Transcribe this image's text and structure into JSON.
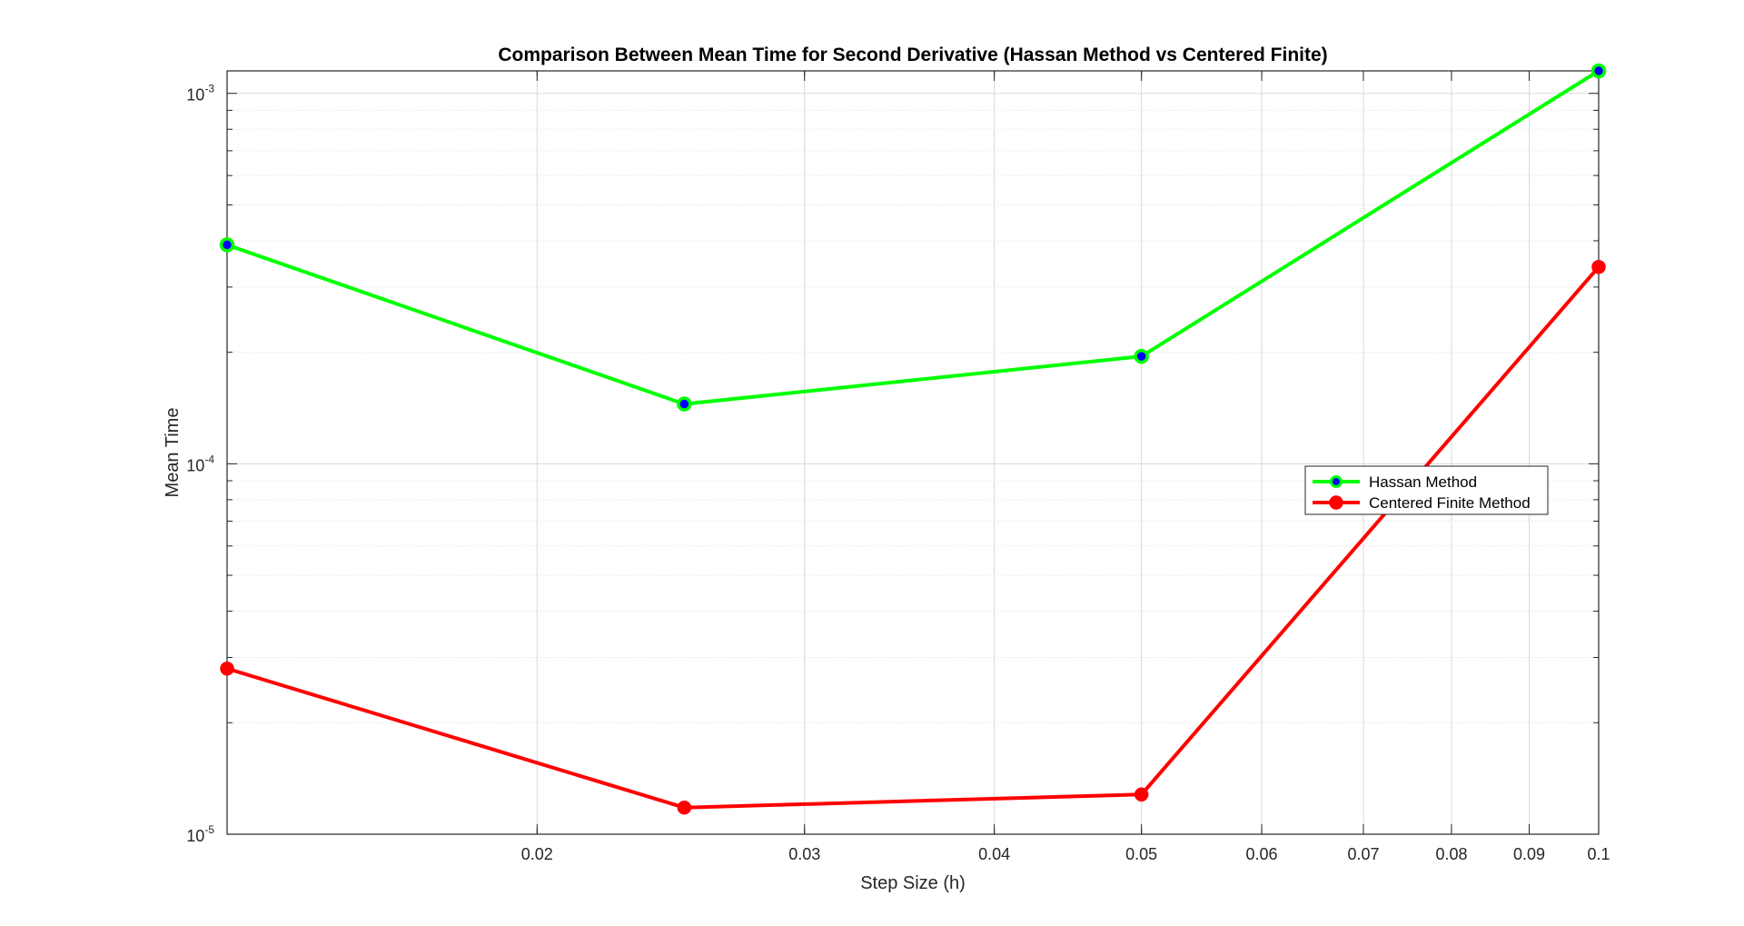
{
  "chart_data": {
    "type": "line",
    "title": "Comparison Between Mean Time for Second Derivative (Hassan Method vs Centered Finite)",
    "xlabel": "Step Size (h)",
    "ylabel": "Mean Time",
    "xscale": "log",
    "yscale": "log",
    "xlim": [
      0.0125,
      0.1
    ],
    "ylim": [
      1e-05,
      0.00115
    ],
    "grid": true,
    "minor_grid": true,
    "legend_location": "east",
    "x_ticks": [
      0.02,
      0.03,
      0.04,
      0.05,
      0.06,
      0.07,
      0.08,
      0.09,
      0.1
    ],
    "x_tick_labels": [
      "0.02",
      "0.03",
      "0.04",
      "0.05",
      "0.06",
      "0.07",
      "0.08",
      "0.09",
      "0.1"
    ],
    "y_ticks": [
      {
        "value": 1e-05,
        "base": "10",
        "exponent": "-5"
      },
      {
        "value": 0.0001,
        "base": "10",
        "exponent": "-4"
      },
      {
        "value": 0.001,
        "base": "10",
        "exponent": "-3"
      }
    ],
    "x": [
      0.0125,
      0.025,
      0.05,
      0.1
    ],
    "series": [
      {
        "name": "Hassan Method",
        "values": [
          0.00039,
          0.000145,
          0.000195,
          0.00115
        ],
        "color": "#00ff00",
        "marker_face": "#0000ff",
        "marker": "circle"
      },
      {
        "name": "Centered Finite Method",
        "values": [
          2.8e-05,
          1.18e-05,
          1.28e-05,
          0.00034
        ],
        "color": "#ff0000",
        "marker_face": "#ff0000",
        "marker": "circle"
      }
    ]
  }
}
